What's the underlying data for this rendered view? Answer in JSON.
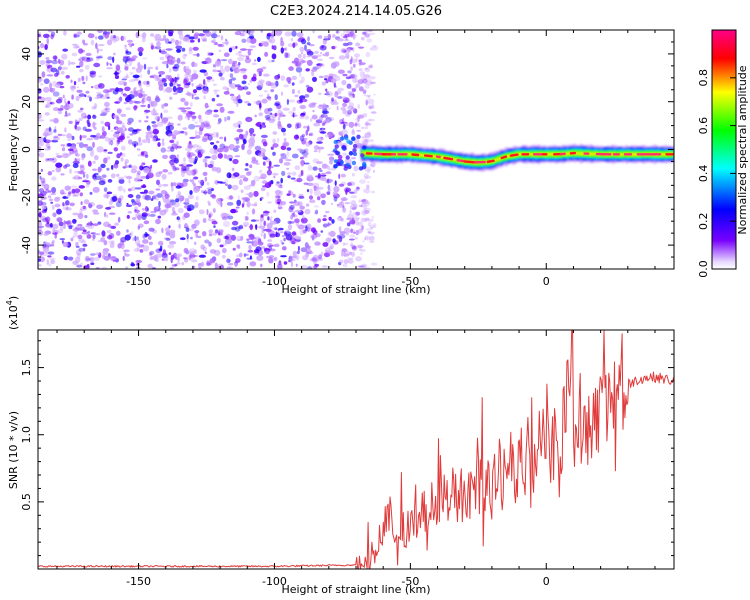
{
  "figure_title": "C2E3.2024.214.14.05.G26",
  "colorbar_label": "Normalized spectral amplitude",
  "chart_data": [
    {
      "type": "heatmap",
      "title": "C2E3.2024.214.14.05.G26",
      "xlabel": "Height of straight line (km)",
      "ylabel": "Frequency (Hz)",
      "xlim": [
        -187,
        47
      ],
      "ylim": [
        -50,
        50
      ],
      "x_ticks": [
        -150,
        -100,
        -50,
        0
      ],
      "y_ticks": [
        -40,
        -20,
        0,
        20,
        40
      ],
      "colorbar": {
        "label": "Normalized spectral amplitude",
        "range": [
          0.0,
          1.0
        ],
        "ticks": [
          "0.0",
          "0.2",
          "0.4",
          "0.6",
          "0.8"
        ],
        "colormap": [
          "#ffffff",
          "#7700ff",
          "#0000ff",
          "#00ffff",
          "#00ff00",
          "#ffff00",
          "#ff0000",
          "#ff0088"
        ]
      },
      "noise_region": {
        "x_range": [
          -187,
          -66
        ],
        "max_amplitude": 0.1
      },
      "signal_ridge": {
        "x": [
          -68,
          -60,
          -50,
          -40,
          -35,
          -30,
          -25,
          -20,
          -15,
          -10,
          -5,
          0,
          5,
          10,
          20,
          30,
          40,
          47
        ],
        "frequency": [
          -1.5,
          -2,
          -2,
          -3,
          -4,
          -5,
          -5.5,
          -5,
          -3,
          -2,
          -2,
          -2,
          -2,
          -1.5,
          -2,
          -2,
          -2,
          -2
        ]
      }
    },
    {
      "type": "line",
      "xlabel": "Height of straight line (km)",
      "ylabel": "SNR (10 * v/v)",
      "y_multiplier": "(x10",
      "y_multiplier_exp": "4",
      "y_multiplier_close": ")",
      "xlim": [
        -187,
        47
      ],
      "ylim": [
        0,
        1.78
      ],
      "x_ticks": [
        -150,
        -100,
        -50,
        0
      ],
      "y_ticks": [
        "0.5",
        "1.0",
        "1.5"
      ],
      "series": [
        {
          "color": "#e03a3a",
          "x": [
            -187,
            -150,
            -100,
            -70,
            -62,
            -58,
            -56,
            -50,
            -45,
            -40,
            -35,
            -30,
            -25,
            -20,
            -15,
            -10,
            -5,
            0,
            5,
            8,
            9,
            10,
            15,
            20,
            25,
            30,
            35,
            40,
            47
          ],
          "y": [
            0.02,
            0.02,
            0.02,
            0.03,
            0.2,
            0.5,
            0.3,
            0.35,
            0.45,
            0.55,
            0.6,
            0.62,
            0.7,
            0.68,
            0.75,
            0.85,
            0.9,
            1.0,
            1.05,
            1.4,
            1.78,
            1.2,
            1.2,
            1.25,
            1.3,
            1.38,
            1.42,
            1.43,
            1.4
          ]
        }
      ]
    }
  ]
}
